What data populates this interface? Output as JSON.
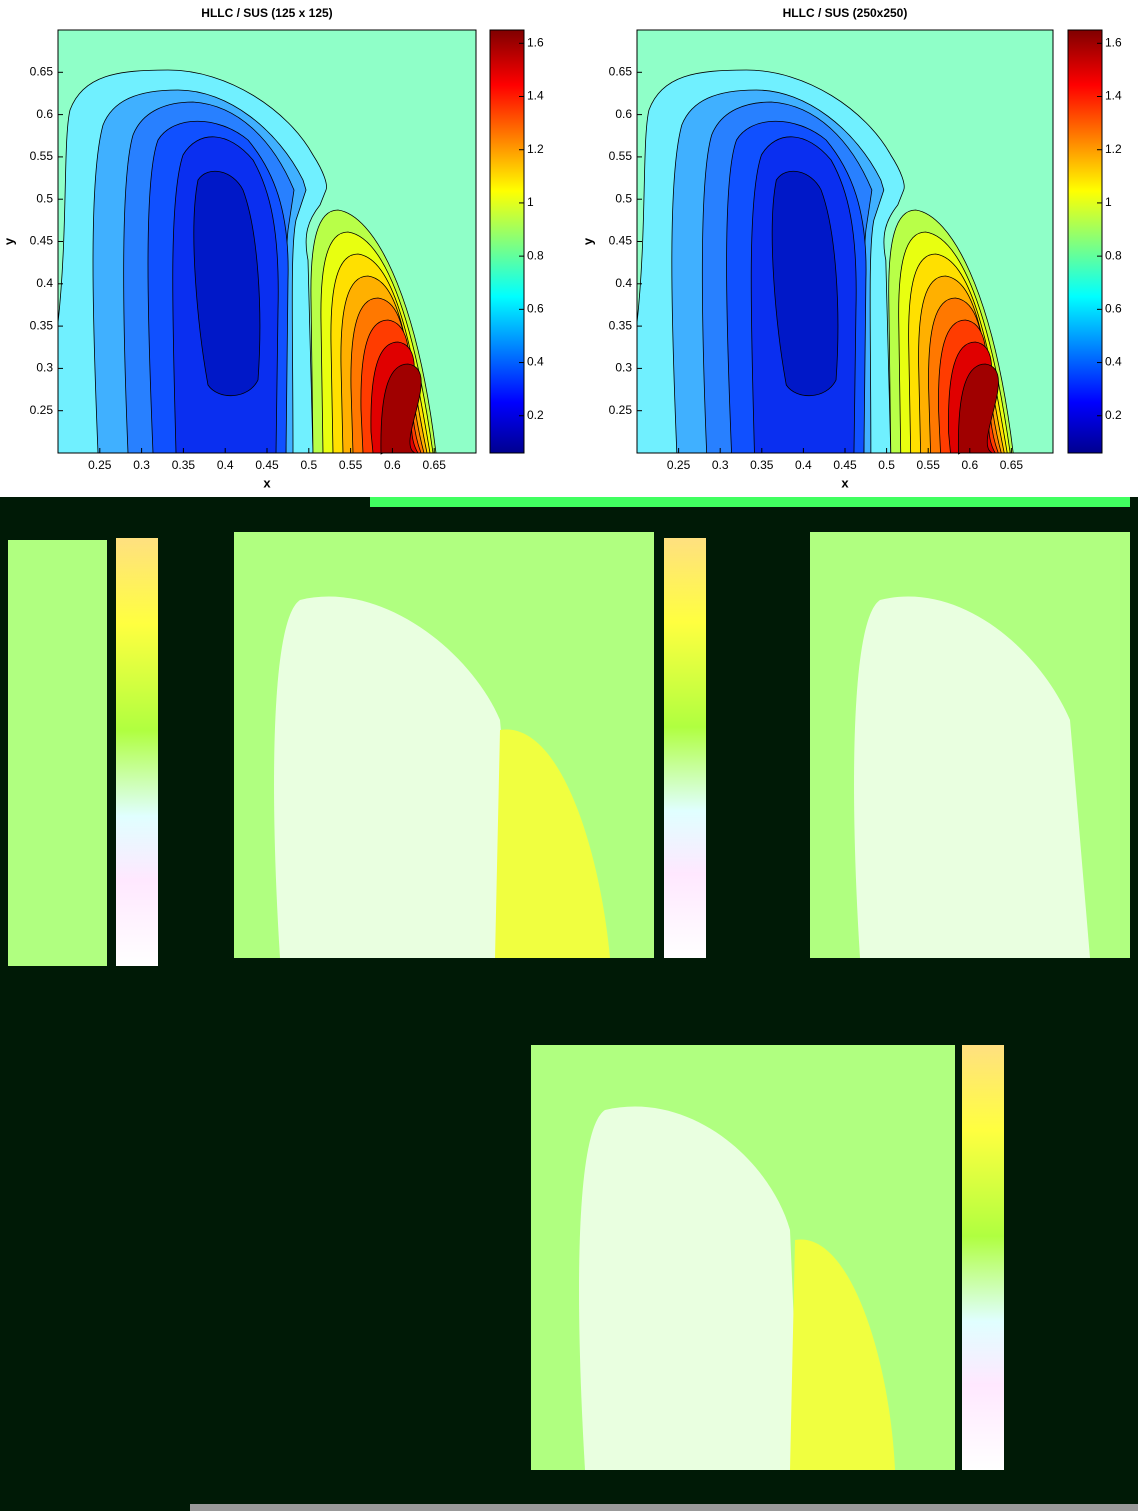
{
  "chart_data": [
    {
      "type": "contour",
      "title": "HLLC / SUS (125 x 125)",
      "x_label": "x",
      "y_label": "y",
      "xlim": [
        0.2,
        0.7
      ],
      "ylim": [
        0.2,
        0.7
      ],
      "xticks": [
        0.25,
        0.3,
        0.35,
        0.4,
        0.45,
        0.5,
        0.55,
        0.6,
        0.65
      ],
      "yticks": [
        0.25,
        0.3,
        0.35,
        0.4,
        0.45,
        0.5,
        0.55,
        0.6,
        0.65
      ],
      "clim": [
        0.06,
        1.65
      ],
      "colorbar_ticks": [
        0.2,
        0.4,
        0.6,
        0.8,
        1,
        1.2,
        1.4,
        1.6
      ]
    },
    {
      "type": "contour",
      "title": "HLLC / SUS (250x250)",
      "x_label": "x",
      "y_label": "y",
      "xlim": [
        0.2,
        0.7
      ],
      "ylim": [
        0.2,
        0.7
      ],
      "xticks": [
        0.25,
        0.3,
        0.35,
        0.4,
        0.45,
        0.5,
        0.55,
        0.6,
        0.65
      ],
      "yticks": [
        0.25,
        0.3,
        0.35,
        0.4,
        0.45,
        0.5,
        0.55,
        0.6,
        0.65
      ],
      "clim": [
        0.06,
        1.65
      ],
      "colorbar_ticks": [
        0.2,
        0.4,
        0.6,
        0.8,
        1,
        1.2,
        1.4,
        1.6
      ]
    }
  ]
}
